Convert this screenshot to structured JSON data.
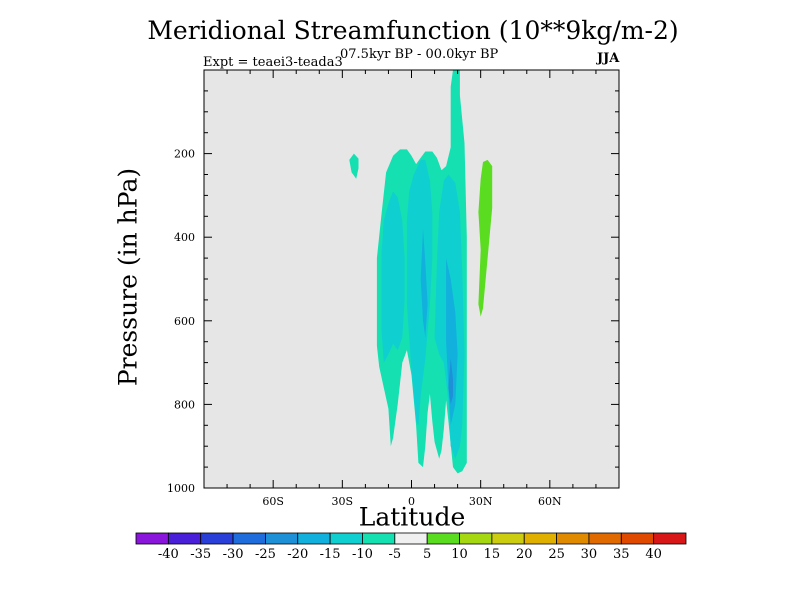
{
  "chart_data": {
    "type": "contour",
    "title": "Meridional Streamfunction (10**9kg/m-2)",
    "subtitle": "07.5kyr BP - 00.0kyr BP",
    "annotation_left": "Expt = teaei3-teada3",
    "annotation_right": "JJA",
    "xlabel": "Latitude",
    "ylabel": "Pressure (in hPa)",
    "xlim": [
      -90,
      90
    ],
    "ylim": [
      1000,
      0
    ],
    "x_ticks": [
      {
        "value": -60,
        "label": "60S"
      },
      {
        "value": -30,
        "label": "30S"
      },
      {
        "value": 0,
        "label": "0"
      },
      {
        "value": 30,
        "label": "30N"
      },
      {
        "value": 60,
        "label": "60N"
      }
    ],
    "y_ticks": [
      {
        "value": 200,
        "label": "200"
      },
      {
        "value": 400,
        "label": "400"
      },
      {
        "value": 600,
        "label": "600"
      },
      {
        "value": 800,
        "label": "800"
      },
      {
        "value": 1000,
        "label": "1000"
      }
    ],
    "missing_color": "#e6e6e6",
    "colorbar": {
      "levels": [
        -40,
        -35,
        -30,
        -25,
        -20,
        -15,
        -10,
        -5,
        5,
        10,
        15,
        20,
        25,
        30,
        35,
        40
      ],
      "colors": [
        "#8a16dc",
        "#4a1fd9",
        "#2a3fd8",
        "#1f6ddc",
        "#1e90d8",
        "#12b0dc",
        "#10cfd0",
        "#14e0b2",
        "#f0f0f0",
        "#5adc20",
        "#a6d812",
        "#cccc10",
        "#e0b000",
        "#e08a00",
        "#e06a00",
        "#e04a00",
        "#d81818"
      ]
    },
    "regions": [
      {
        "name": "small-negative-blob",
        "color": "#14e0b2",
        "points": [
          [
            -27,
            215
          ],
          [
            -25,
            200
          ],
          [
            -23,
            212
          ],
          [
            -23,
            235
          ],
          [
            -24,
            260
          ],
          [
            -26,
            245
          ]
        ]
      },
      {
        "name": "main-negative-envelope",
        "color": "#14e0b2",
        "points": [
          [
            -15,
            450
          ],
          [
            -13,
            345
          ],
          [
            -11,
            245
          ],
          [
            -8,
            205
          ],
          [
            -5,
            190
          ],
          [
            -2,
            190
          ],
          [
            0,
            205
          ],
          [
            2,
            225
          ],
          [
            4,
            210
          ],
          [
            6,
            195
          ],
          [
            9,
            195
          ],
          [
            11,
            210
          ],
          [
            13,
            240
          ],
          [
            15,
            230
          ],
          [
            17,
            185
          ],
          [
            17,
            40
          ],
          [
            18,
            0
          ],
          [
            21,
            0
          ],
          [
            21,
            60
          ],
          [
            23,
            175
          ],
          [
            24,
            400
          ],
          [
            24,
            940
          ],
          [
            22,
            960
          ],
          [
            20,
            965
          ],
          [
            18,
            950
          ],
          [
            16,
            840
          ],
          [
            15,
            790
          ],
          [
            14,
            860
          ],
          [
            13,
            910
          ],
          [
            12,
            930
          ],
          [
            10,
            890
          ],
          [
            9,
            840
          ],
          [
            8,
            775
          ],
          [
            7,
            820
          ],
          [
            6,
            900
          ],
          [
            5,
            950
          ],
          [
            3,
            940
          ],
          [
            2,
            850
          ],
          [
            0,
            730
          ],
          [
            -2,
            670
          ],
          [
            -4,
            700
          ],
          [
            -6,
            800
          ],
          [
            -8,
            880
          ],
          [
            -9,
            900
          ],
          [
            -10,
            810
          ],
          [
            -12,
            760
          ],
          [
            -14,
            710
          ],
          [
            -15,
            660
          ]
        ]
      },
      {
        "name": "negative-core-left",
        "color": "#10cfd0",
        "points": [
          [
            -13,
            440
          ],
          [
            -12,
            360
          ],
          [
            -10,
            320
          ],
          [
            -8,
            290
          ],
          [
            -6,
            305
          ],
          [
            -4,
            360
          ],
          [
            -3,
            450
          ],
          [
            -3,
            550
          ],
          [
            -4,
            640
          ],
          [
            -6,
            670
          ],
          [
            -8,
            655
          ],
          [
            -10,
            680
          ],
          [
            -12,
            700
          ],
          [
            -13,
            620
          ]
        ]
      },
      {
        "name": "negative-core-center",
        "color": "#10cfd0",
        "points": [
          [
            -2,
            360
          ],
          [
            -1,
            290
          ],
          [
            1,
            250
          ],
          [
            4,
            215
          ],
          [
            6,
            215
          ],
          [
            8,
            265
          ],
          [
            9,
            340
          ],
          [
            9,
            450
          ],
          [
            8,
            560
          ],
          [
            6,
            690
          ],
          [
            4,
            780
          ],
          [
            3,
            850
          ],
          [
            2,
            840
          ],
          [
            0,
            720
          ],
          [
            -1,
            640
          ],
          [
            -2,
            560
          ]
        ]
      },
      {
        "name": "negative-core-right",
        "color": "#10cfd0",
        "points": [
          [
            10,
            640
          ],
          [
            11,
            460
          ],
          [
            12,
            340
          ],
          [
            14,
            265
          ],
          [
            16,
            250
          ],
          [
            19,
            270
          ],
          [
            21,
            340
          ],
          [
            22,
            480
          ],
          [
            23,
            680
          ],
          [
            22,
            850
          ],
          [
            21,
            900
          ],
          [
            19,
            930
          ],
          [
            17,
            900
          ],
          [
            16,
            790
          ],
          [
            14,
            700
          ],
          [
            12,
            680
          ]
        ]
      },
      {
        "name": "negative-strong-center",
        "color": "#12b0dc",
        "points": [
          [
            5,
            380
          ],
          [
            6,
            460
          ],
          [
            7,
            560
          ],
          [
            6,
            640
          ],
          [
            5,
            600
          ],
          [
            4,
            500
          ]
        ]
      },
      {
        "name": "negative-strong-right",
        "color": "#12b0dc",
        "points": [
          [
            15,
            450
          ],
          [
            17,
            500
          ],
          [
            19,
            580
          ],
          [
            20,
            680
          ],
          [
            19,
            800
          ],
          [
            17,
            850
          ],
          [
            16,
            760
          ],
          [
            15,
            650
          ],
          [
            15,
            560
          ]
        ]
      },
      {
        "name": "negative-strongest-right",
        "color": "#1e90d8",
        "points": [
          [
            17,
            690
          ],
          [
            18,
            740
          ],
          [
            18,
            780
          ],
          [
            17,
            800
          ],
          [
            16,
            760
          ]
        ]
      },
      {
        "name": "positive-blob",
        "color": "#5adc20",
        "points": [
          [
            31,
            220
          ],
          [
            33,
            215
          ],
          [
            35,
            230
          ],
          [
            35,
            330
          ],
          [
            33,
            450
          ],
          [
            31,
            570
          ],
          [
            30,
            590
          ],
          [
            29,
            560
          ],
          [
            30,
            430
          ],
          [
            29,
            340
          ],
          [
            30,
            260
          ]
        ]
      }
    ]
  }
}
